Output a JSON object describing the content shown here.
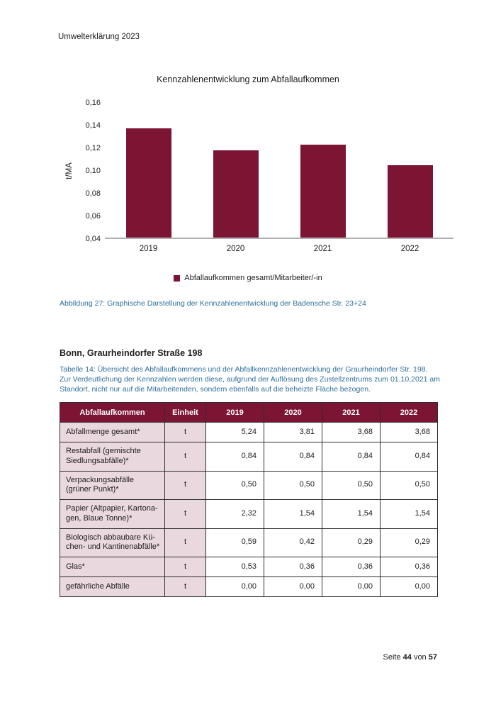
{
  "doc_header": "Umwelterklärung 2023",
  "chart_data": {
    "type": "bar",
    "title": "Kennzahlenentwicklung zum Abfallaufkommen",
    "xlabel": "",
    "ylabel": "t/MA",
    "categories": [
      "2019",
      "2020",
      "2021",
      "2022"
    ],
    "values": [
      0.136,
      0.117,
      0.122,
      0.104
    ],
    "series_name": "Abfallaufkommen gesamt/Mitarbeiter/-in",
    "ylim": [
      0.04,
      0.16
    ],
    "ytick_labels": [
      "0,16",
      "0,14",
      "0,12",
      "0,10",
      "0,08",
      "0,06",
      "0,04"
    ],
    "grid": false,
    "legend_position": "bottom",
    "bar_color": "#7c1434"
  },
  "figure_caption": "Abbildung 27: Graphische Darstellung der Kennzahlenentwicklung der Badensche Str. 23+24",
  "section": {
    "heading": "Bonn, Graurheindorfer Straße 198",
    "table_caption": "Tabelle 14: Übersicht des Abfallaufkommens und der Abfallkennzahlenentwicklung der Graurheindorfer Str. 198. Zur Ver­deutlichung der Kennzahlen werden diese, aufgrund der Auflösung des Zustellzentrums zum 01.10.2021 am Standort, nicht nur auf die Mitarbeitenden, sondern ebenfalls auf die beheizte Fläche bezogen."
  },
  "table": {
    "headers": [
      "Abfallaufkommen",
      "Einheit",
      "2019",
      "2020",
      "2021",
      "2022"
    ],
    "rows": [
      {
        "label": "Abfallmenge gesamt*",
        "unit": "t",
        "values": [
          "5,24",
          "3,81",
          "3,68",
          "3,68"
        ]
      },
      {
        "label": "Restabfall (gemischte Sied­lungsabfälle)*",
        "unit": "t",
        "values": [
          "0,84",
          "0,84",
          "0,84",
          "0,84"
        ]
      },
      {
        "label": "Verpackungsabfälle (grüner Punkt)*",
        "unit": "t",
        "values": [
          "0,50",
          "0,50",
          "0,50",
          "0,50"
        ]
      },
      {
        "label": "Papier (Altpapier, Kartona­gen, Blaue Tonne)*",
        "unit": "t",
        "values": [
          "2,32",
          "1,54",
          "1,54",
          "1,54"
        ]
      },
      {
        "label": "Biologisch abbaubare Kü­chen- und Kantinenabfälle*",
        "unit": "t",
        "values": [
          "0,59",
          "0,42",
          "0,29",
          "0,29"
        ]
      },
      {
        "label": "Glas*",
        "unit": "t",
        "values": [
          "0,53",
          "0,36",
          "0,36",
          "0,36"
        ]
      },
      {
        "label": "gefährliche Abfälle",
        "unit": "t",
        "values": [
          "0,00",
          "0,00",
          "0,00",
          "0,00"
        ]
      }
    ]
  },
  "footer": {
    "prefix": "Seite",
    "page_number": "44",
    "separator": "von",
    "total_pages": "57"
  },
  "colors": {
    "accent_maroon": "#7c1434",
    "table_label_bg": "#e9d8de",
    "caption_blue": "#2e6f9d",
    "axis_line": "#b0b0b0",
    "table_border": "#2e2e2e"
  }
}
